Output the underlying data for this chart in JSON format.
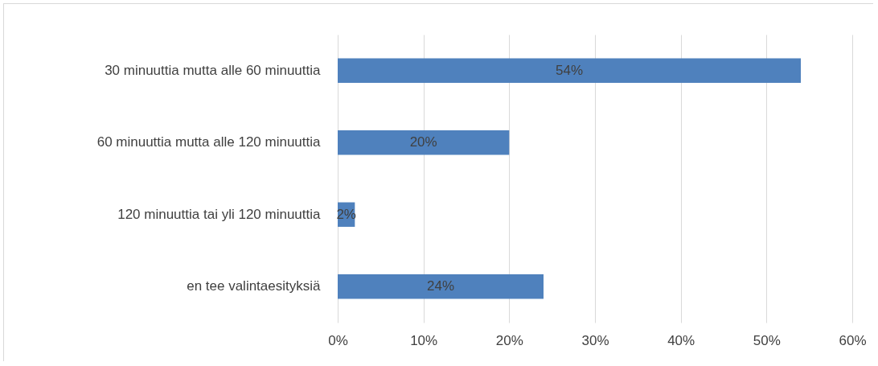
{
  "chart_data": {
    "type": "bar",
    "orientation": "horizontal",
    "categories": [
      "30 minuuttia mutta alle 60 minuuttia",
      "60 minuuttia mutta alle 120 minuuttia",
      "120 minuuttia tai yli 120 minuuttia",
      "en tee valintaesityksiä"
    ],
    "values": [
      54,
      20,
      2,
      24
    ],
    "value_labels": [
      "54%",
      "20%",
      "2%",
      "24%"
    ],
    "color": "#4f81bd",
    "xlim": [
      0,
      60
    ],
    "xticks": [
      {
        "value": 0,
        "label": "0%"
      },
      {
        "value": 10,
        "label": "10%"
      },
      {
        "value": 20,
        "label": "20%"
      },
      {
        "value": 30,
        "label": "30%"
      },
      {
        "value": 40,
        "label": "40%"
      },
      {
        "value": 50,
        "label": "50%"
      },
      {
        "value": 60,
        "label": "60%"
      }
    ],
    "grid": "x"
  }
}
